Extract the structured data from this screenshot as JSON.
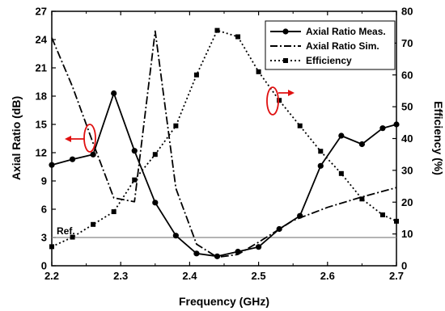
{
  "chart_data": {
    "type": "line",
    "xlabel": "Frequency (GHz)",
    "ylabel_left": "Axial Ratio (dB)",
    "ylabel_right": "Efficiency (%)",
    "xlim": [
      2.2,
      2.7
    ],
    "ylim_left": [
      0,
      27
    ],
    "ylim_right": [
      0,
      80
    ],
    "x_ticks": [
      "2.2",
      "2.3",
      "2.4",
      "2.5",
      "2.6",
      "2.7"
    ],
    "y_left_ticks": [
      "0",
      "3",
      "6",
      "9",
      "12",
      "15",
      "18",
      "21",
      "24",
      "27"
    ],
    "y_right_ticks": [
      "0",
      "10",
      "20",
      "30",
      "40",
      "50",
      "60",
      "70",
      "80"
    ],
    "legend_position": "top-right",
    "series": [
      {
        "name": "Axial Ratio Meas.",
        "axis": "left",
        "style": "solid-circle",
        "x": [
          2.2,
          2.23,
          2.26,
          2.29,
          2.32,
          2.35,
          2.38,
          2.41,
          2.44,
          2.47,
          2.5,
          2.53,
          2.56,
          2.59,
          2.62,
          2.65,
          2.68,
          2.7
        ],
        "y": [
          10.7,
          11.3,
          11.8,
          18.3,
          12.2,
          6.7,
          3.2,
          1.3,
          1.0,
          1.5,
          2.0,
          3.9,
          5.3,
          10.6,
          13.8,
          12.9,
          14.6,
          15.0
        ]
      },
      {
        "name": "Axial Ratio Sim.",
        "axis": "left",
        "style": "dash-dot",
        "x": [
          2.2,
          2.23,
          2.26,
          2.29,
          2.32,
          2.35,
          2.38,
          2.41,
          2.44,
          2.47,
          2.5,
          2.55,
          2.6,
          2.65,
          2.7
        ],
        "y": [
          24.2,
          19.0,
          13.0,
          7.2,
          6.8,
          24.9,
          8.2,
          2.3,
          0.9,
          1.2,
          2.5,
          4.8,
          6.2,
          7.3,
          8.3
        ]
      },
      {
        "name": "Efficiency",
        "axis": "right",
        "style": "dotted-square",
        "x": [
          2.2,
          2.23,
          2.26,
          2.29,
          2.32,
          2.35,
          2.38,
          2.41,
          2.44,
          2.47,
          2.5,
          2.53,
          2.56,
          2.59,
          2.62,
          2.65,
          2.68,
          2.7
        ],
        "y": [
          6,
          9,
          13,
          17,
          27,
          35,
          44,
          60,
          74,
          72,
          61,
          52,
          44,
          36,
          29,
          21,
          16,
          14
        ]
      }
    ],
    "reference_line": {
      "label": "Ref.",
      "y": 3,
      "axis": "left"
    }
  },
  "colors": {
    "series": "#000000",
    "reference": "#888888",
    "annotation": "#e01010"
  }
}
